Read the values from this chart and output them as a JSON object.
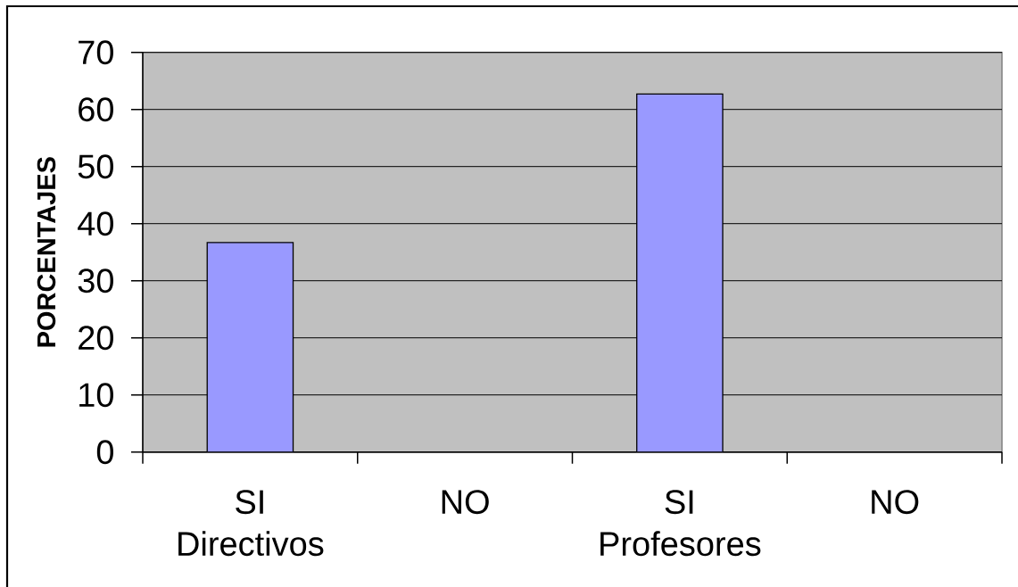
{
  "chart_data": {
    "type": "bar",
    "ylabel": "PORCENTAJES",
    "categories": [
      "SI Directivos",
      "NO",
      "SI Profesores",
      "NO"
    ],
    "values": [
      36.7,
      0,
      62.7,
      0
    ],
    "color": "#9999ff",
    "ylim": [
      0,
      70
    ],
    "yticks": [
      0,
      10,
      20,
      30,
      40,
      50,
      60,
      70
    ],
    "grid": "y"
  }
}
